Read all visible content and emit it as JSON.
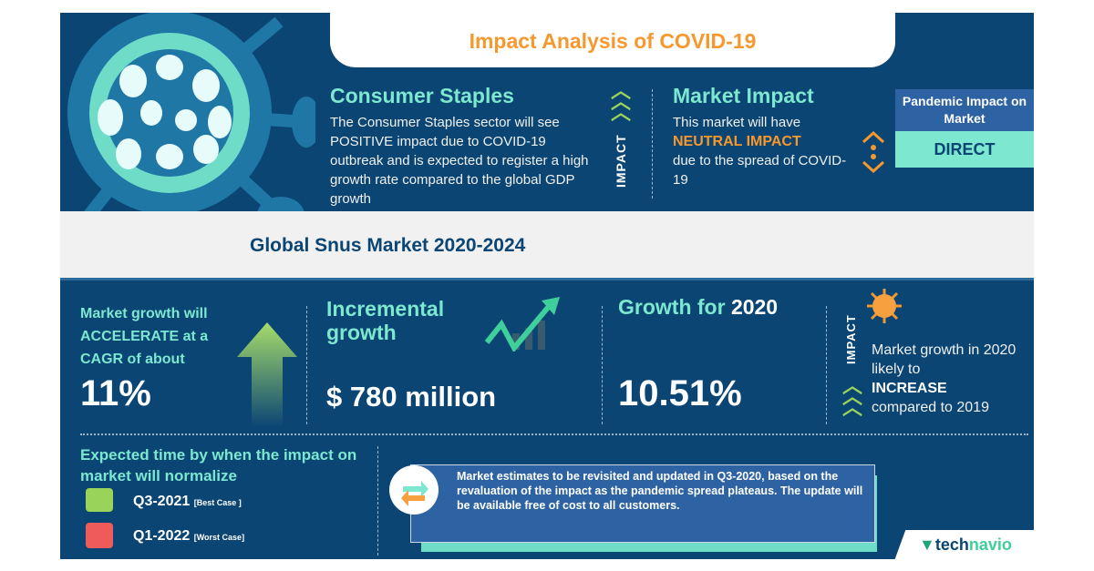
{
  "header": {
    "title": "Impact Analysis of COVID-19"
  },
  "sector": {
    "title": "Consumer Staples",
    "description": "The Consumer Staples sector will see POSITIVE impact due to COVID-19 outbreak and is expected to register a high growth rate compared to the global GDP growth"
  },
  "impact_label": "IMPACT",
  "market_impact": {
    "title": "Market Impact",
    "line1": "This market will have",
    "highlight": "NEUTRAL IMPACT",
    "line2": "due to the spread of COVID-19"
  },
  "pandemic": {
    "label": "Pandemic Impact on Market",
    "value": "DIRECT"
  },
  "report_title": "Global Snus Market 2020-2024",
  "cagr": {
    "text": "Market growth will ACCELERATE at a CAGR of about",
    "value": "11%"
  },
  "incremental": {
    "title": "Incremental growth",
    "value": "$ 780 million"
  },
  "growth2020": {
    "title": "Growth for",
    "year": "2020",
    "value": "10.51%"
  },
  "impact2020": {
    "label": "IMPACT",
    "line1": "Market growth in 2020 likely to",
    "highlight": "INCREASE",
    "line2": "compared to 2019"
  },
  "normalize": {
    "title": "Expected time by when the impact on market will normalize",
    "best": "Q3-2021",
    "best_note": "[Best Case ]",
    "worst": "Q1-2022",
    "worst_note": "[Worst Case]"
  },
  "note": "Market estimates to be revisited and updated in Q3-2020, based on the revaluation of the impact as the pandemic spread plateaus. The update will be available free of cost to all customers.",
  "brand": {
    "logo": "technavio"
  },
  "colors": {
    "navy": "#0a4574",
    "mint": "#7de8cf",
    "orange": "#f6982e",
    "green": "#9ad35a",
    "red": "#ef5b5b"
  }
}
